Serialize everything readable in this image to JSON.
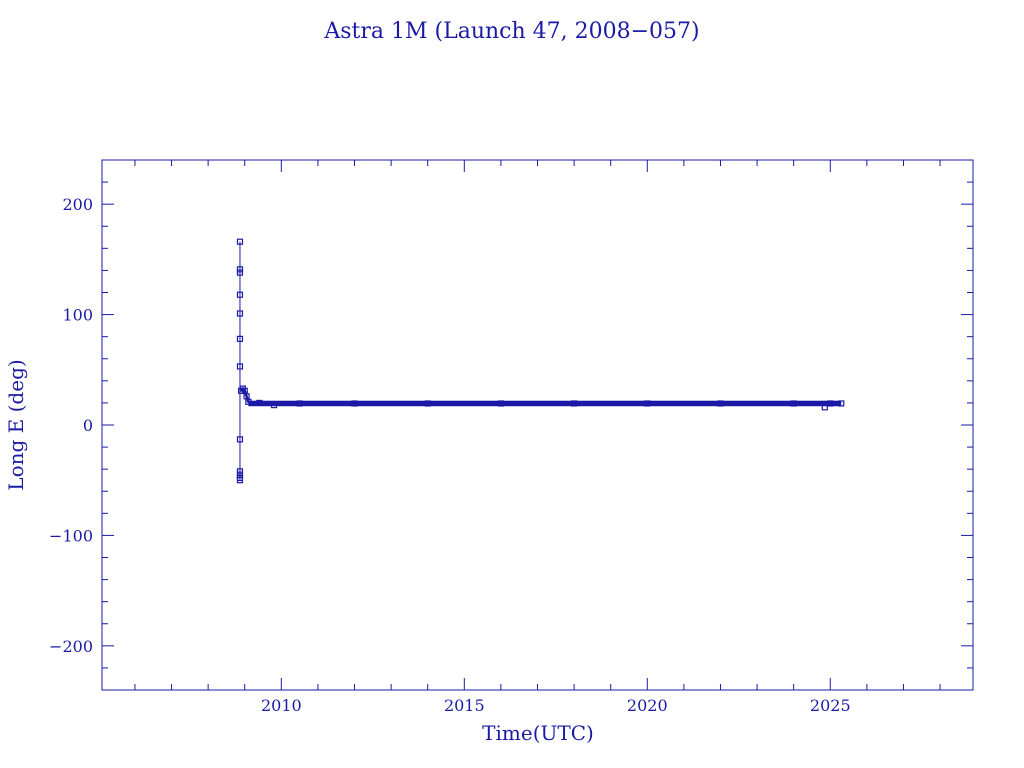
{
  "chart_data": {
    "type": "scatter",
    "title": "Astra 1M (Launch 47, 2008−057)",
    "xlabel": "Time(UTC)",
    "ylabel": "Long E (deg)",
    "xlim": [
      2005.1,
      2028.9
    ],
    "ylim": [
      -240,
      240
    ],
    "x_ticks": [
      2010,
      2015,
      2020,
      2025
    ],
    "x_tick_labels": [
      "2010",
      "2015",
      "2020",
      "2025"
    ],
    "y_ticks": [
      -200,
      -100,
      0,
      100,
      200
    ],
    "y_tick_labels": [
      "−200",
      "−100",
      "0",
      "100",
      "200"
    ],
    "grid": false,
    "color": "#1a1aa6",
    "series": [
      {
        "points": [
          [
            2008.87,
            -50
          ],
          [
            2008.87,
            -48
          ],
          [
            2008.87,
            -45
          ],
          [
            2008.87,
            -42
          ],
          [
            2008.87,
            -13
          ],
          [
            2008.87,
            53
          ],
          [
            2008.87,
            78
          ],
          [
            2008.87,
            101
          ],
          [
            2008.87,
            118
          ],
          [
            2008.87,
            138
          ],
          [
            2008.87,
            141
          ],
          [
            2008.87,
            166
          ],
          [
            2008.9,
            31
          ],
          [
            2008.95,
            33
          ],
          [
            2009.0,
            31
          ],
          [
            2009.05,
            26
          ],
          [
            2009.1,
            21
          ],
          [
            2009.4,
            20
          ],
          [
            2009.8,
            18
          ],
          [
            2010.5,
            19.5
          ],
          [
            2012.0,
            19.5
          ],
          [
            2014.0,
            19.5
          ],
          [
            2016.0,
            19.5
          ],
          [
            2018.0,
            19.5
          ],
          [
            2020.0,
            19.5
          ],
          [
            2022.0,
            19.5
          ],
          [
            2024.0,
            19.5
          ],
          [
            2024.85,
            16
          ],
          [
            2025.0,
            19.5
          ],
          [
            2025.3,
            19.5
          ]
        ]
      }
    ]
  }
}
